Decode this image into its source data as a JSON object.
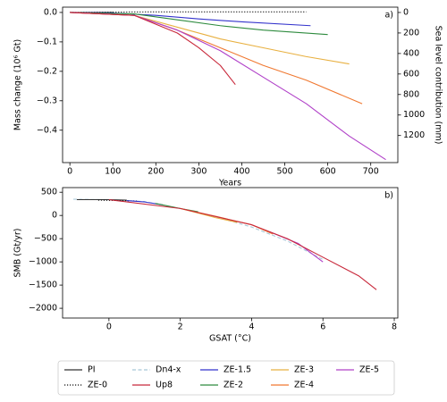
{
  "legend": {
    "entries": [
      {
        "name": "PI",
        "color": "#333333",
        "dash": "solid"
      },
      {
        "name": "ZE-0",
        "color": "#111111",
        "dash": "dotted"
      },
      {
        "name": "Dn4-x",
        "color": "#a8c8d8",
        "dash": "dashed"
      },
      {
        "name": "Up8",
        "color": "#c8283a",
        "dash": "solid"
      },
      {
        "name": "ZE-1.5",
        "color": "#3333cc",
        "dash": "solid"
      },
      {
        "name": "ZE-2",
        "color": "#2e8b3e",
        "dash": "solid"
      },
      {
        "name": "ZE-3",
        "color": "#e8b040",
        "dash": "solid"
      },
      {
        "name": "ZE-4",
        "color": "#f07830",
        "dash": "solid"
      },
      {
        "name": "ZE-5",
        "color": "#b040c8",
        "dash": "solid"
      }
    ]
  },
  "chart_data": [
    {
      "type": "line",
      "panel_label": "a)",
      "x_label": "Years",
      "y_label": "Mass change (10⁶ Gt)",
      "y2_label": "Sea level contribution (mm)",
      "xlim": [
        -17,
        763
      ],
      "xticks": [
        0,
        100,
        200,
        300,
        400,
        500,
        600,
        700
      ],
      "ylim": [
        -0.51,
        0.018
      ],
      "yticks": [
        {
          "value": 0,
          "label": "0.0"
        },
        {
          "value": -0.1,
          "label": "−0.1"
        },
        {
          "value": -0.2,
          "label": "−0.2"
        },
        {
          "value": -0.3,
          "label": "−0.3"
        },
        {
          "value": -0.4,
          "label": "−0.4"
        }
      ],
      "y2lim": [
        -52,
        1464
      ],
      "y2_inverted": true,
      "y2ticks": [
        0,
        200,
        400,
        600,
        800,
        1000,
        1200
      ],
      "series": [
        {
          "name": "PI",
          "x": [
            0,
            50,
            100
          ],
          "values": [
            0,
            0,
            0
          ]
        },
        {
          "name": "ZE-0",
          "x": [
            0,
            100,
            200,
            300,
            400,
            550
          ],
          "values": [
            0,
            0.001,
            0.002,
            0.002,
            0.002,
            0.002
          ]
        },
        {
          "name": "ZE-1.5",
          "x": [
            0,
            100,
            200,
            300,
            400,
            560
          ],
          "values": [
            0,
            -0.002,
            -0.01,
            -0.022,
            -0.032,
            -0.045
          ]
        },
        {
          "name": "ZE-2",
          "x": [
            0,
            150,
            250,
            350,
            450,
            600
          ],
          "values": [
            0,
            -0.005,
            -0.025,
            -0.045,
            -0.06,
            -0.075
          ]
        },
        {
          "name": "ZE-3",
          "x": [
            0,
            150,
            250,
            350,
            450,
            550,
            650
          ],
          "values": [
            0,
            -0.01,
            -0.05,
            -0.09,
            -0.12,
            -0.15,
            -0.175
          ]
        },
        {
          "name": "ZE-4",
          "x": [
            0,
            150,
            250,
            350,
            450,
            550,
            680
          ],
          "values": [
            0,
            -0.01,
            -0.06,
            -0.12,
            -0.18,
            -0.23,
            -0.31
          ]
        },
        {
          "name": "ZE-5",
          "x": [
            0,
            150,
            250,
            350,
            450,
            550,
            650,
            735
          ],
          "values": [
            0,
            -0.01,
            -0.06,
            -0.13,
            -0.22,
            -0.31,
            -0.42,
            -0.5
          ]
        },
        {
          "name": "Up8",
          "x": [
            0,
            150,
            250,
            300,
            350,
            385
          ],
          "values": [
            0,
            -0.01,
            -0.07,
            -0.12,
            -0.18,
            -0.245
          ]
        }
      ]
    },
    {
      "type": "line",
      "panel_label": "b)",
      "x_label": "GSAT (°C)",
      "y_label": "SMB (Gt/yr)",
      "xlim": [
        -1.3,
        8.1
      ],
      "xticks": [
        0,
        2,
        4,
        6,
        8
      ],
      "ylim": [
        -2210,
        600
      ],
      "yticks": [
        500,
        0,
        {
          "value": -500,
          "label": "−500"
        },
        {
          "value": -1000,
          "label": "−1000"
        },
        {
          "value": -1500,
          "label": "−1500"
        },
        {
          "value": -2000,
          "label": "−2000"
        }
      ],
      "series": [
        {
          "name": "Dn4-x",
          "x": [
            -1,
            0,
            1,
            2,
            3,
            4,
            5,
            6
          ],
          "values": [
            350,
            340,
            300,
            150,
            -30,
            -250,
            -550,
            -950
          ]
        },
        {
          "name": "PI",
          "x": [
            -0.9,
            0,
            0.5
          ],
          "values": [
            340,
            340,
            330
          ]
        },
        {
          "name": "ZE-0",
          "x": [
            -0.3,
            0.3,
            0.8
          ],
          "values": [
            330,
            320,
            310
          ]
        },
        {
          "name": "ZE-1.5",
          "x": [
            0.5,
            1,
            1.5
          ],
          "values": [
            320,
            290,
            230
          ]
        },
        {
          "name": "ZE-2",
          "x": [
            1.3,
            2,
            2.5
          ],
          "values": [
            260,
            150,
            80
          ]
        },
        {
          "name": "ZE-3",
          "x": [
            2,
            3,
            3.6
          ],
          "values": [
            150,
            -50,
            -150
          ]
        },
        {
          "name": "ZE-4",
          "x": [
            2,
            3,
            4,
            4.6
          ],
          "values": [
            150,
            -20,
            -200,
            -400
          ]
        },
        {
          "name": "ZE-5",
          "x": [
            4.5,
            5.3,
            6
          ],
          "values": [
            -350,
            -600,
            -1000
          ]
        },
        {
          "name": "Up8",
          "x": [
            0,
            2,
            4,
            5,
            6,
            7,
            7.5
          ],
          "values": [
            340,
            150,
            -200,
            -500,
            -900,
            -1300,
            -1600
          ]
        }
      ]
    }
  ]
}
